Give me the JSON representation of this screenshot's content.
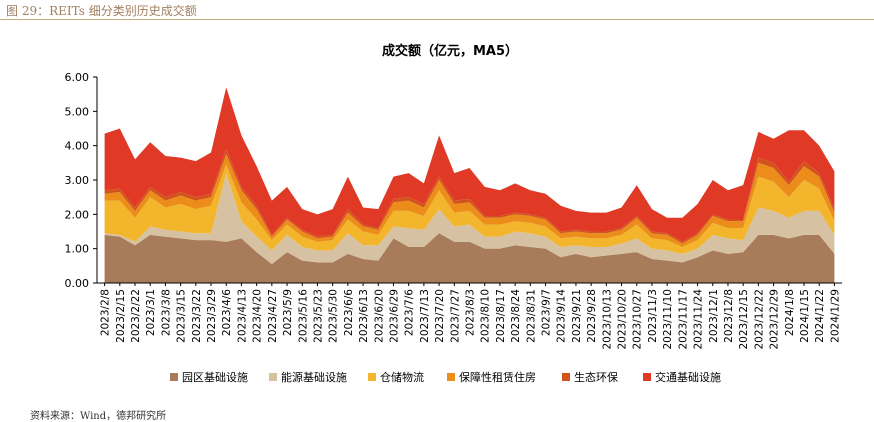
{
  "figure": {
    "caption": "图 29：REITs 细分类别历史成交额",
    "source": "资料来源：Wind，德邦研究所"
  },
  "chart_data": {
    "type": "area",
    "stacked": true,
    "title": "成交额（亿元，MA5）",
    "xlabel": "",
    "ylabel": "",
    "ylim": [
      0,
      6
    ],
    "yticks": [
      "0.00",
      "1.00",
      "2.00",
      "3.00",
      "4.00",
      "5.00",
      "6.00"
    ],
    "grid": false,
    "legend_position": "bottom",
    "x_tick_labels": [
      "2023/2/8",
      "2023/2/15",
      "2023/2/22",
      "2023/3/1",
      "2023/3/8",
      "2023/3/15",
      "2023/3/22",
      "2023/3/29",
      "2023/4/6",
      "2023/4/13",
      "2023/4/20",
      "2023/4/27",
      "2023/5/9",
      "2023/5/16",
      "2023/5/23",
      "2023/5/30",
      "2023/6/6",
      "2023/6/13",
      "2023/6/20",
      "2023/6/29",
      "2023/7/6",
      "2023/7/13",
      "2023/7/20",
      "2023/7/27",
      "2023/8/3",
      "2023/8/10",
      "2023/8/17",
      "2023/8/24",
      "2023/8/31",
      "2023/9/7",
      "2023/9/14",
      "2023/9/21",
      "2023/9/28",
      "2023/10/13",
      "2023/10/20",
      "2023/10/27",
      "2023/11/3",
      "2023/11/10",
      "2023/11/17",
      "2023/11/24",
      "2023/12/1",
      "2023/12/8",
      "2023/12/15",
      "2023/12/22",
      "2023/12/29",
      "2024/1/8",
      "2024/1/15",
      "2024/1/22",
      "2024/1/29"
    ],
    "x": [
      "2023/2/8",
      "2023/2/15",
      "2023/2/22",
      "2023/3/1",
      "2023/3/8",
      "2023/3/15",
      "2023/3/22",
      "2023/3/29",
      "2023/4/6",
      "2023/4/13",
      "2023/4/20",
      "2023/4/27",
      "2023/5/9",
      "2023/5/16",
      "2023/5/23",
      "2023/5/30",
      "2023/6/6",
      "2023/6/13",
      "2023/6/20",
      "2023/6/29",
      "2023/7/6",
      "2023/7/13",
      "2023/7/20",
      "2023/7/27",
      "2023/8/3",
      "2023/8/10",
      "2023/8/17",
      "2023/8/24",
      "2023/8/31",
      "2023/9/7",
      "2023/9/14",
      "2023/9/21",
      "2023/9/28",
      "2023/10/13",
      "2023/10/20",
      "2023/10/27",
      "2023/11/3",
      "2023/11/10",
      "2023/11/17",
      "2023/11/24",
      "2023/12/1",
      "2023/12/8",
      "2023/12/15",
      "2023/12/22",
      "2023/12/29",
      "2024/1/8",
      "2024/1/15",
      "2024/1/22",
      "2024/1/29"
    ],
    "series": [
      {
        "name": "园区基础设施",
        "color": "#a87c5a",
        "values": [
          1.4,
          1.35,
          1.1,
          1.4,
          1.35,
          1.3,
          1.25,
          1.25,
          1.2,
          1.3,
          0.9,
          0.55,
          0.9,
          0.65,
          0.6,
          0.6,
          0.85,
          0.7,
          0.65,
          1.3,
          1.05,
          1.05,
          1.45,
          1.2,
          1.2,
          1.0,
          1.0,
          1.1,
          1.05,
          1.0,
          0.75,
          0.85,
          0.75,
          0.8,
          0.85,
          0.9,
          0.7,
          0.65,
          0.6,
          0.75,
          0.95,
          0.85,
          0.9,
          1.4,
          1.4,
          1.3,
          1.4,
          1.4,
          0.85
        ]
      },
      {
        "name": "能源基础设施",
        "color": "#d6c2a2",
        "values": [
          0.05,
          0.05,
          0.1,
          0.25,
          0.2,
          0.2,
          0.2,
          0.2,
          2.0,
          0.5,
          0.45,
          0.4,
          0.5,
          0.4,
          0.35,
          0.35,
          0.6,
          0.4,
          0.45,
          0.35,
          0.55,
          0.5,
          0.7,
          0.45,
          0.5,
          0.35,
          0.35,
          0.4,
          0.4,
          0.35,
          0.3,
          0.25,
          0.3,
          0.25,
          0.3,
          0.4,
          0.3,
          0.3,
          0.25,
          0.25,
          0.45,
          0.45,
          0.35,
          0.8,
          0.7,
          0.6,
          0.7,
          0.7,
          0.55
        ]
      },
      {
        "name": "仓储物流",
        "color": "#f2b52c",
        "values": [
          0.95,
          1.0,
          0.7,
          0.85,
          0.65,
          0.8,
          0.7,
          0.8,
          0.25,
          0.55,
          0.5,
          0.3,
          0.3,
          0.3,
          0.25,
          0.3,
          0.4,
          0.4,
          0.3,
          0.45,
          0.5,
          0.4,
          0.55,
          0.4,
          0.4,
          0.35,
          0.35,
          0.3,
          0.3,
          0.3,
          0.25,
          0.25,
          0.25,
          0.25,
          0.25,
          0.4,
          0.3,
          0.3,
          0.2,
          0.25,
          0.35,
          0.3,
          0.35,
          0.9,
          0.85,
          0.6,
          0.9,
          0.65,
          0.4
        ]
      },
      {
        "name": "保障性租赁住房",
        "color": "#ec8c1a",
        "values": [
          0.2,
          0.25,
          0.2,
          0.2,
          0.2,
          0.25,
          0.25,
          0.25,
          0.3,
          0.35,
          0.3,
          0.1,
          0.15,
          0.15,
          0.1,
          0.1,
          0.2,
          0.15,
          0.15,
          0.25,
          0.3,
          0.25,
          0.3,
          0.25,
          0.25,
          0.2,
          0.2,
          0.2,
          0.2,
          0.2,
          0.15,
          0.15,
          0.15,
          0.15,
          0.15,
          0.2,
          0.15,
          0.15,
          0.1,
          0.15,
          0.2,
          0.2,
          0.2,
          0.4,
          0.4,
          0.35,
          0.4,
          0.35,
          0.25
        ]
      },
      {
        "name": "生态环保",
        "color": "#d2541c",
        "values": [
          0.1,
          0.1,
          0.1,
          0.1,
          0.1,
          0.1,
          0.1,
          0.1,
          0.15,
          0.1,
          0.1,
          0.05,
          0.05,
          0.05,
          0.05,
          0.05,
          0.1,
          0.05,
          0.05,
          0.1,
          0.1,
          0.1,
          0.1,
          0.1,
          0.1,
          0.05,
          0.05,
          0.05,
          0.05,
          0.05,
          0.05,
          0.05,
          0.05,
          0.05,
          0.05,
          0.05,
          0.05,
          0.05,
          0.05,
          0.05,
          0.05,
          0.05,
          0.05,
          0.15,
          0.15,
          0.1,
          0.15,
          0.1,
          0.1
        ]
      },
      {
        "name": "交通基础设施",
        "color": "#e03a26",
        "values": [
          1.65,
          1.75,
          1.4,
          1.3,
          1.2,
          1.0,
          1.05,
          1.2,
          1.8,
          1.5,
          1.15,
          1.0,
          0.9,
          0.6,
          0.65,
          0.75,
          0.95,
          0.5,
          0.55,
          0.65,
          0.7,
          0.6,
          1.2,
          0.8,
          0.9,
          0.85,
          0.75,
          0.85,
          0.7,
          0.7,
          0.75,
          0.55,
          0.55,
          0.55,
          0.6,
          0.9,
          0.65,
          0.45,
          0.7,
          0.85,
          1.0,
          0.85,
          1.0,
          0.75,
          0.7,
          1.5,
          0.9,
          0.8,
          1.1
        ]
      }
    ]
  }
}
